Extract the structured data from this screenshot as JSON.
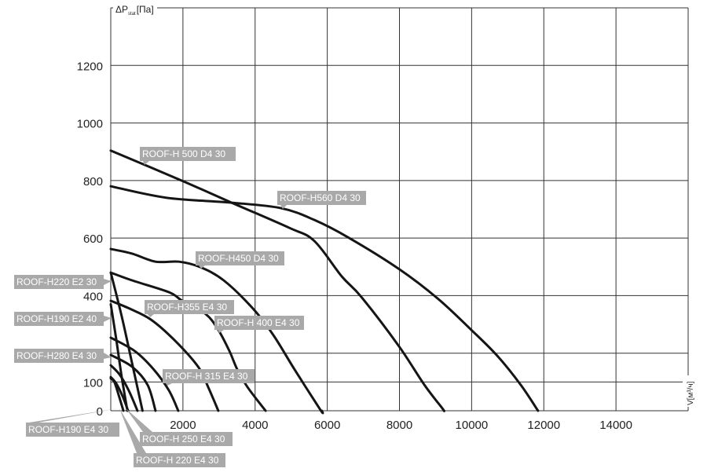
{
  "chart_data": {
    "type": "line",
    "title": "",
    "ylabel": "ΔP",
    "ylabel_sub": "stat",
    "ylabel_unit": "[Па]",
    "xlabel": "V[м³/ч]",
    "xlim": [
      0,
      16000
    ],
    "ylim": [
      0,
      1400
    ],
    "grid": true,
    "x_gridlines": [
      0,
      2000,
      4000,
      6000,
      8000,
      10000,
      12000,
      14000,
      16000
    ],
    "y_gridlines": [
      0,
      100,
      200,
      400,
      600,
      800,
      1000,
      1200,
      1400
    ],
    "x_tick_labels": [
      "2000",
      "4000",
      "6000",
      "8000",
      "10000",
      "12000",
      "14000"
    ],
    "x_ticks": [
      2000,
      4000,
      6000,
      8000,
      10000,
      12000,
      14000
    ],
    "y_tick_labels": [
      "0",
      "100",
      "400",
      "600",
      "800",
      "1000",
      "1200"
    ],
    "y_ticks": [
      0,
      100,
      400,
      600,
      800,
      1000,
      1200
    ],
    "series": [
      {
        "name": "ROOF-H 500 D4 30",
        "points": [
          [
            0,
            904
          ],
          [
            1960,
            800
          ],
          [
            3350,
            723
          ],
          [
            4940,
            636
          ],
          [
            5640,
            590
          ],
          [
            6400,
            467
          ],
          [
            6940,
            396
          ],
          [
            7970,
            227
          ],
          [
            8690,
            90
          ],
          [
            9190,
            8
          ],
          [
            9230,
            0
          ]
        ]
      },
      {
        "name": "ROOF-H560 D4 30",
        "points": [
          [
            0,
            780
          ],
          [
            1550,
            740
          ],
          [
            3350,
            723
          ],
          [
            4720,
            704
          ],
          [
            5640,
            663
          ],
          [
            6570,
            603
          ],
          [
            7970,
            494
          ],
          [
            9060,
            390
          ],
          [
            9990,
            281
          ],
          [
            10710,
            191
          ],
          [
            11360,
            90
          ],
          [
            11840,
            0
          ]
        ]
      },
      {
        "name": "ROOF-H450 D4 30",
        "points": [
          [
            0,
            562
          ],
          [
            590,
            546
          ],
          [
            1240,
            518
          ],
          [
            1890,
            518
          ],
          [
            2480,
            499
          ],
          [
            3130,
            453
          ],
          [
            3940,
            355
          ],
          [
            4510,
            262
          ],
          [
            5100,
            142
          ],
          [
            5810,
            3
          ],
          [
            5850,
            0
          ]
        ]
      },
      {
        "name": "ROOF-H 400 E4 30",
        "points": [
          [
            0,
            480
          ],
          [
            590,
            453
          ],
          [
            1610,
            412
          ],
          [
            1980,
            382
          ],
          [
            2630,
            336
          ],
          [
            2980,
            281
          ],
          [
            3290,
            207
          ],
          [
            3500,
            145
          ],
          [
            3790,
            82
          ],
          [
            4290,
            0
          ]
        ]
      },
      {
        "name": "ROOF-H355 E4 30",
        "points": [
          [
            0,
            382
          ],
          [
            520,
            355
          ],
          [
            1110,
            317
          ],
          [
            1760,
            246
          ],
          [
            2420,
            153
          ],
          [
            2700,
            82
          ],
          [
            2980,
            0
          ]
        ]
      },
      {
        "name": "ROOF-H 315 E4 30",
        "points": [
          [
            0,
            254
          ],
          [
            670,
            207
          ],
          [
            1180,
            145
          ],
          [
            1610,
            71
          ],
          [
            1870,
            0
          ]
        ]
      },
      {
        "name": "ROOF-H280 E4 30",
        "points": [
          [
            0,
            194
          ],
          [
            590,
            153
          ],
          [
            1020,
            90
          ],
          [
            1240,
            0
          ]
        ]
      },
      {
        "name": "ROOF-H220 E2 30",
        "points": [
          [
            0,
            480
          ],
          [
            300,
            330
          ],
          [
            600,
            160
          ],
          [
            880,
            0
          ]
        ]
      },
      {
        "name": "ROOF-H190 E2 40",
        "points": [
          [
            0,
            370
          ],
          [
            150,
            250
          ],
          [
            300,
            120
          ],
          [
            460,
            0
          ]
        ]
      },
      {
        "name": "ROOF-H  250 E4 30",
        "points": [
          [
            0,
            158
          ],
          [
            250,
            125
          ],
          [
            500,
            70
          ],
          [
            740,
            0
          ]
        ]
      },
      {
        "name": "ROOF-H 220 E4 30",
        "points": [
          [
            0,
            117
          ],
          [
            150,
            95
          ],
          [
            330,
            50
          ],
          [
            480,
            0
          ]
        ]
      },
      {
        "name": "ROOF-H190 E4 30",
        "points": [
          [
            0,
            112
          ],
          [
            100,
            100
          ],
          [
            230,
            50
          ],
          [
            350,
            0
          ]
        ]
      }
    ],
    "colors": {
      "curve": "#151515",
      "label_box": "#a9a9a9",
      "label_text": "#ffffff",
      "grid": "#333333"
    }
  }
}
